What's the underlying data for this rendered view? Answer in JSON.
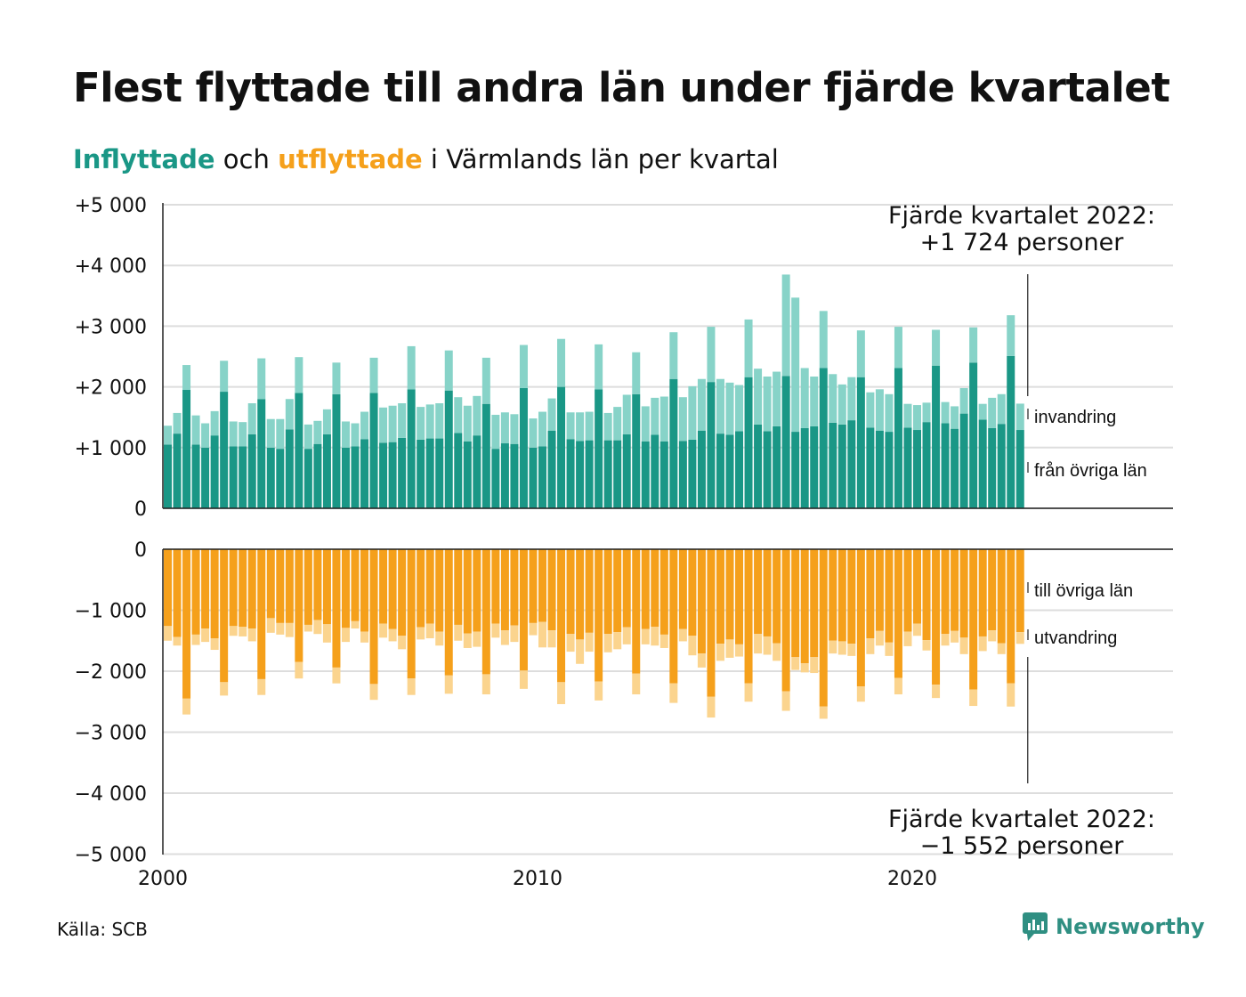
{
  "title": "Flest flyttade till andra län under fjärde kvartalet",
  "subtitle": {
    "in_word": "Inflyttade",
    "mid_word": " och ",
    "out_word": "utflyttade",
    "rest": " i Värmlands län per kvartal"
  },
  "colors": {
    "in_dark": "#1a9786",
    "in_light": "#87d3c8",
    "out_dark": "#f5a01b",
    "out_light": "#fbd48e",
    "grid": "#dddddd",
    "axis": "#222222"
  },
  "source": "Källa: SCB",
  "logo": {
    "icon": "newsworthy-logo-icon",
    "text": "Newsworthy"
  },
  "chart_data": [
    {
      "type": "bar",
      "stacked": true,
      "title": "",
      "xlabel": "",
      "ylabel": "",
      "x_ticks": [
        "2000",
        "2010",
        "2020"
      ],
      "y_ticks": [
        "+5 000",
        "+4 000",
        "+3 000",
        "+2 000",
        "+1 000",
        "0"
      ],
      "ylim": [
        0,
        5000
      ],
      "start_year": 2000,
      "grid": true,
      "annotation": {
        "line1": "Fjärde kvartalet 2022:",
        "line2": "+1 724 personer"
      },
      "series": [
        {
          "name": "från övriga län",
          "values": [
            1050,
            1230,
            1950,
            1050,
            1000,
            1200,
            1920,
            1020,
            1020,
            1220,
            1800,
            1000,
            980,
            1300,
            1900,
            980,
            1060,
            1220,
            1880,
            1000,
            1020,
            1140,
            1900,
            1080,
            1090,
            1160,
            1960,
            1130,
            1150,
            1150,
            1940,
            1240,
            1100,
            1200,
            1720,
            980,
            1070,
            1060,
            1980,
            1000,
            1020,
            1280,
            2000,
            1140,
            1110,
            1120,
            1960,
            1120,
            1120,
            1220,
            1880,
            1100,
            1210,
            1100,
            2130,
            1110,
            1130,
            1280,
            2080,
            1230,
            1210,
            1270,
            2160,
            1380,
            1270,
            1350,
            2180,
            1260,
            1320,
            1350,
            2310,
            1410,
            1380,
            1450,
            2160,
            1330,
            1280,
            1260,
            2310,
            1330,
            1290,
            1420,
            2350,
            1400,
            1310,
            1560,
            2400,
            1460,
            1320,
            1390,
            2510,
            1290
          ]
        },
        {
          "name": "invandring",
          "values": [
            310,
            340,
            410,
            480,
            400,
            400,
            510,
            410,
            400,
            510,
            670,
            470,
            490,
            500,
            590,
            400,
            380,
            410,
            520,
            430,
            380,
            450,
            580,
            580,
            600,
            570,
            710,
            540,
            560,
            580,
            660,
            590,
            590,
            650,
            760,
            560,
            510,
            490,
            710,
            480,
            570,
            530,
            790,
            440,
            470,
            470,
            740,
            450,
            550,
            650,
            690,
            580,
            610,
            740,
            770,
            720,
            880,
            850,
            910,
            900,
            860,
            760,
            950,
            920,
            900,
            900,
            1670,
            2210,
            990,
            820,
            940,
            800,
            660,
            710,
            770,
            580,
            680,
            620,
            680,
            390,
            410,
            320,
            590,
            350,
            370,
            420,
            580,
            260,
            500,
            490,
            670,
            434
          ]
        }
      ]
    },
    {
      "type": "bar",
      "stacked": true,
      "title": "",
      "xlabel": "",
      "ylabel": "",
      "x_ticks": [
        "2000",
        "2010",
        "2020"
      ],
      "y_ticks": [
        "0",
        "−1 000",
        "−2 000",
        "−3 000",
        "−4 000",
        "−5 000"
      ],
      "ylim": [
        -5000,
        0
      ],
      "start_year": 2000,
      "grid": true,
      "annotation": {
        "line1": "Fjärde kvartalet 2022:",
        "line2": "−1 552 personer"
      },
      "series": [
        {
          "name": "till övriga län",
          "values": [
            -1260,
            -1440,
            -2450,
            -1400,
            -1300,
            -1460,
            -2180,
            -1260,
            -1270,
            -1300,
            -2130,
            -1130,
            -1210,
            -1210,
            -1850,
            -1240,
            -1160,
            -1230,
            -1940,
            -1290,
            -1180,
            -1350,
            -2210,
            -1220,
            -1310,
            -1420,
            -2120,
            -1280,
            -1220,
            -1350,
            -2070,
            -1240,
            -1380,
            -1350,
            -2050,
            -1220,
            -1330,
            -1250,
            -1990,
            -1210,
            -1190,
            -1330,
            -2180,
            -1390,
            -1480,
            -1370,
            -2170,
            -1390,
            -1360,
            -1280,
            -2040,
            -1310,
            -1270,
            -1400,
            -2200,
            -1310,
            -1420,
            -1710,
            -2420,
            -1550,
            -1480,
            -1560,
            -2200,
            -1390,
            -1430,
            -1540,
            -2330,
            -1770,
            -1870,
            -1770,
            -2580,
            -1500,
            -1510,
            -1550,
            -2250,
            -1460,
            -1340,
            -1530,
            -2110,
            -1350,
            -1220,
            -1490,
            -2220,
            -1390,
            -1340,
            -1450,
            -2300,
            -1430,
            -1330,
            -1540,
            -2200,
            -1360
          ]
        },
        {
          "name": "utvandring",
          "values": [
            -240,
            -140,
            -260,
            -170,
            -220,
            -190,
            -220,
            -160,
            -160,
            -210,
            -260,
            -240,
            -190,
            -230,
            -270,
            -110,
            -230,
            -300,
            -260,
            -230,
            -120,
            -180,
            -260,
            -230,
            -200,
            -220,
            -270,
            -200,
            -240,
            -230,
            -300,
            -260,
            -240,
            -250,
            -330,
            -230,
            -240,
            -270,
            -300,
            -200,
            -420,
            -280,
            -360,
            -290,
            -400,
            -310,
            -310,
            -300,
            -280,
            -280,
            -340,
            -250,
            -310,
            -220,
            -320,
            -200,
            -320,
            -230,
            -340,
            -280,
            -300,
            -200,
            -300,
            -320,
            -300,
            -290,
            -320,
            -210,
            -150,
            -260,
            -200,
            -210,
            -220,
            -200,
            -250,
            -260,
            -240,
            -220,
            -270,
            -240,
            -200,
            -170,
            -220,
            -190,
            -190,
            -270,
            -270,
            -240,
            -180,
            -180,
            -380,
            -192
          ]
        }
      ]
    }
  ]
}
